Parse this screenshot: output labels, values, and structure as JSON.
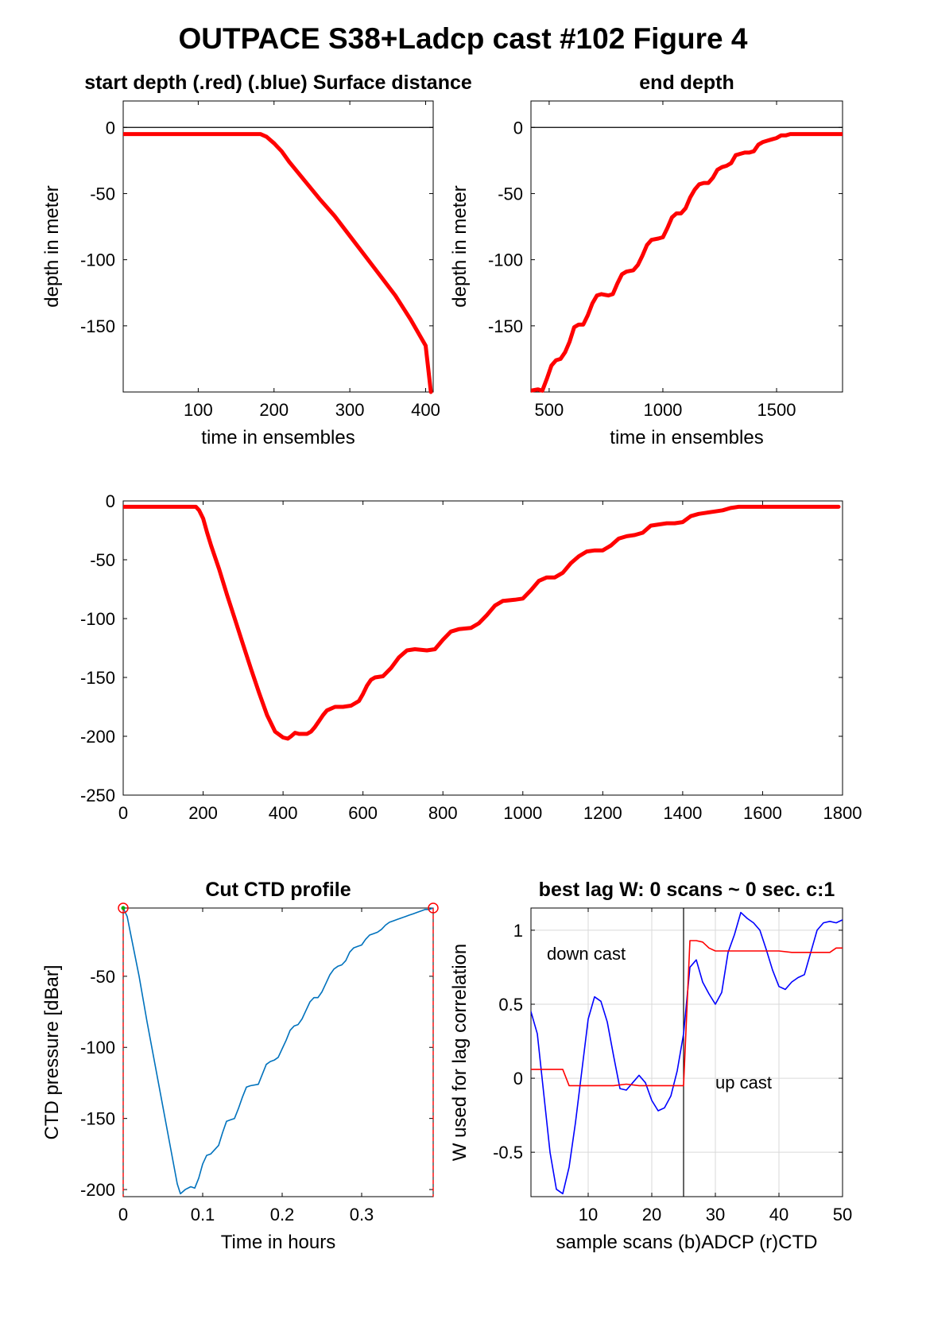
{
  "figure_title": "OUTPACE S38+Ladcp cast #102   Figure 4",
  "colors": {
    "red": "#ff0000",
    "blue": "#0000ff",
    "ctd_line": "#0072bd",
    "axis": "#000000",
    "grid": "#d9d9d9",
    "start_marker": "#00aa00"
  },
  "chart_data": [
    {
      "id": "start_depth",
      "type": "line",
      "title": "start depth (.red) (.blue) Surface distance",
      "xlabel": "time in ensembles",
      "ylabel": "depth in meter",
      "xlim": [
        1,
        410
      ],
      "ylim": [
        -200,
        20
      ],
      "xticks": [
        100,
        200,
        300,
        400
      ],
      "yticks": [
        0,
        -50,
        -100,
        -150
      ],
      "grid": false,
      "box": true,
      "hlines": [
        0
      ],
      "series": [
        {
          "color": "red",
          "x": [
            1,
            50,
            100,
            150,
            170,
            182,
            190,
            200,
            210,
            220,
            230,
            240,
            260,
            280,
            300,
            320,
            340,
            360,
            380,
            400,
            407
          ],
          "y": [
            -5,
            -5,
            -5,
            -5,
            -5,
            -5,
            -7,
            -12,
            -18,
            -26,
            -33,
            -40,
            -54,
            -67,
            -82,
            -97,
            -112,
            -127,
            -145,
            -165,
            -200
          ]
        }
      ]
    },
    {
      "id": "end_depth",
      "type": "line",
      "title": "end depth",
      "xlabel": "time in ensembles",
      "ylabel": "depth in meter",
      "xlim": [
        420,
        1790
      ],
      "ylim": [
        -200,
        20
      ],
      "xticks": [
        500,
        1000,
        1500
      ],
      "yticks": [
        0,
        -50,
        -100,
        -150
      ],
      "grid": false,
      "box": true,
      "hlines": [
        0
      ],
      "series": [
        {
          "color": "red",
          "x": [
            420,
            450,
            470,
            490,
            510,
            530,
            550,
            570,
            590,
            610,
            630,
            650,
            670,
            690,
            710,
            730,
            760,
            780,
            800,
            820,
            840,
            870,
            890,
            910,
            930,
            950,
            980,
            1000,
            1020,
            1040,
            1060,
            1080,
            1100,
            1120,
            1140,
            1160,
            1180,
            1200,
            1220,
            1240,
            1260,
            1280,
            1300,
            1320,
            1340,
            1360,
            1380,
            1400,
            1420,
            1440,
            1460,
            1480,
            1500,
            1520,
            1540,
            1560,
            1600,
            1700,
            1790
          ],
          "y": [
            -199,
            -198,
            -199,
            -190,
            -180,
            -176,
            -175,
            -170,
            -162,
            -151,
            -149,
            -149,
            -142,
            -133,
            -127,
            -126,
            -127,
            -126,
            -118,
            -111,
            -109,
            -108,
            -104,
            -97,
            -89,
            -85,
            -84,
            -83,
            -76,
            -68,
            -65,
            -65,
            -61,
            -53,
            -47,
            -43,
            -42,
            -42,
            -38,
            -32,
            -30,
            -29,
            -27,
            -21,
            -20,
            -19,
            -19,
            -18,
            -13,
            -11,
            -10,
            -9,
            -8,
            -6,
            -6,
            -5,
            -5,
            -5,
            -5
          ]
        }
      ]
    },
    {
      "id": "full_profile",
      "type": "line",
      "title": "",
      "xlabel": "",
      "ylabel": "",
      "xlim": [
        0,
        1800
      ],
      "ylim": [
        -250,
        0
      ],
      "xticks": [
        0,
        200,
        400,
        600,
        800,
        1000,
        1200,
        1400,
        1600,
        1800
      ],
      "yticks": [
        0,
        -50,
        -100,
        -150,
        -200,
        -250
      ],
      "grid": false,
      "box": true,
      "hlines": [],
      "series": [
        {
          "color": "red",
          "x": [
            1,
            50,
            100,
            150,
            170,
            182,
            190,
            200,
            210,
            220,
            240,
            260,
            280,
            300,
            320,
            340,
            360,
            380,
            400,
            412,
            420,
            430,
            440,
            450,
            460,
            470,
            480,
            490,
            500,
            510,
            530,
            550,
            570,
            590,
            600,
            610,
            620,
            630,
            650,
            670,
            690,
            710,
            730,
            760,
            780,
            800,
            820,
            840,
            870,
            890,
            910,
            930,
            950,
            980,
            1000,
            1020,
            1040,
            1060,
            1080,
            1100,
            1120,
            1140,
            1160,
            1180,
            1200,
            1220,
            1240,
            1260,
            1280,
            1300,
            1320,
            1340,
            1360,
            1380,
            1400,
            1420,
            1440,
            1460,
            1480,
            1500,
            1520,
            1540,
            1560,
            1600,
            1700,
            1790
          ],
          "y": [
            -5,
            -5,
            -5,
            -5,
            -5,
            -5,
            -8,
            -15,
            -27,
            -38,
            -58,
            -80,
            -101,
            -122,
            -143,
            -163,
            -182,
            -196,
            -201,
            -202,
            -200,
            -197,
            -198,
            -198,
            -198,
            -196,
            -192,
            -187,
            -182,
            -178,
            -175,
            -175,
            -174,
            -170,
            -164,
            -157,
            -152,
            -150,
            -149,
            -142,
            -133,
            -127,
            -126,
            -127,
            -126,
            -118,
            -111,
            -109,
            -108,
            -104,
            -97,
            -89,
            -85,
            -84,
            -83,
            -76,
            -68,
            -65,
            -65,
            -61,
            -53,
            -47,
            -43,
            -42,
            -42,
            -38,
            -32,
            -30,
            -29,
            -27,
            -21,
            -20,
            -19,
            -19,
            -18,
            -13,
            -11,
            -10,
            -9,
            -8,
            -6,
            -5,
            -5,
            -5,
            -5,
            -5
          ]
        }
      ]
    },
    {
      "id": "cut_ctd",
      "type": "line",
      "title": "Cut CTD profile",
      "xlabel": "Time in hours",
      "ylabel": "CTD pressure [dBar]",
      "xlim": [
        0,
        0.39
      ],
      "ylim": [
        -205,
        -2
      ],
      "xticks": [
        0,
        0.1,
        0.2,
        0.3
      ],
      "xticklabels": [
        "0",
        "0.1",
        "0.2",
        "0.3"
      ],
      "yticks": [
        -50,
        -100,
        -150,
        -200
      ],
      "grid": false,
      "box": true,
      "hlines": [],
      "vlines_dashed": [
        0,
        0.39
      ],
      "series": [
        {
          "color": "ctd_line",
          "x": [
            0,
            0.005,
            0.01,
            0.02,
            0.03,
            0.04,
            0.05,
            0.06,
            0.068,
            0.072,
            0.078,
            0.085,
            0.09,
            0.095,
            0.1,
            0.105,
            0.11,
            0.12,
            0.125,
            0.13,
            0.135,
            0.14,
            0.145,
            0.15,
            0.155,
            0.16,
            0.17,
            0.175,
            0.18,
            0.185,
            0.19,
            0.195,
            0.2,
            0.205,
            0.21,
            0.215,
            0.22,
            0.225,
            0.23,
            0.235,
            0.24,
            0.245,
            0.25,
            0.255,
            0.26,
            0.265,
            0.27,
            0.275,
            0.28,
            0.285,
            0.29,
            0.295,
            0.3,
            0.305,
            0.31,
            0.315,
            0.32,
            0.325,
            0.33,
            0.335,
            0.34,
            0.345,
            0.35,
            0.355,
            0.36,
            0.365,
            0.37,
            0.375,
            0.38,
            0.385,
            0.39
          ],
          "y": [
            -2,
            -8,
            -22,
            -50,
            -82,
            -112,
            -142,
            -172,
            -196,
            -203,
            -200,
            -198,
            -199,
            -192,
            -182,
            -176,
            -175,
            -169,
            -160,
            -152,
            -151,
            -150,
            -143,
            -135,
            -128,
            -127,
            -126,
            -119,
            -112,
            -110,
            -109,
            -107,
            -101,
            -95,
            -88,
            -85,
            -84,
            -80,
            -74,
            -68,
            -65,
            -65,
            -61,
            -55,
            -49,
            -45,
            -43,
            -42,
            -39,
            -33,
            -30,
            -29,
            -28,
            -24,
            -21,
            -20,
            -19,
            -17,
            -14,
            -12,
            -11,
            -10,
            -9,
            -8,
            -7,
            -6,
            -5,
            -4,
            -3,
            -3,
            -2
          ]
        }
      ],
      "endpoint_markers": [
        {
          "x": 0,
          "y": -2
        },
        {
          "x": 0.39,
          "y": -2
        }
      ]
    },
    {
      "id": "best_lag",
      "type": "line",
      "title": "best lag W: 0 scans ~ 0 sec.  c:1",
      "xlabel": "sample scans (b)ADCP (r)CTD",
      "ylabel": "W used for lag correlation",
      "xlim": [
        1,
        50
      ],
      "ylim": [
        -0.8,
        1.15
      ],
      "xticks": [
        10,
        20,
        30,
        40,
        50
      ],
      "yticks": [
        1,
        0.5,
        0,
        -0.5
      ],
      "yticklabels": [
        "1",
        "0.5",
        "0",
        "-0.5"
      ],
      "grid": true,
      "box": true,
      "vlines": [
        25
      ],
      "annotations": [
        {
          "text": "down cast",
          "x": 3.5,
          "y": 0.8
        },
        {
          "text": "up cast",
          "x": 30,
          "y": -0.07
        }
      ],
      "series": [
        {
          "color": "blue",
          "x": [
            1,
            2,
            3,
            4,
            5,
            6,
            7,
            8,
            9,
            10,
            11,
            12,
            13,
            14,
            15,
            16,
            17,
            18,
            19,
            20,
            21,
            22,
            23,
            24,
            25,
            26,
            27,
            28,
            29,
            30,
            31,
            32,
            33,
            34,
            35,
            36,
            37,
            38,
            39,
            40,
            41,
            42,
            43,
            44,
            45,
            46,
            47,
            48,
            49,
            50
          ],
          "y": [
            0.45,
            0.3,
            -0.1,
            -0.5,
            -0.75,
            -0.78,
            -0.6,
            -0.3,
            0.05,
            0.4,
            0.55,
            0.52,
            0.38,
            0.15,
            -0.07,
            -0.08,
            -0.03,
            0.02,
            -0.03,
            -0.15,
            -0.22,
            -0.2,
            -0.12,
            0.05,
            0.3,
            0.75,
            0.8,
            0.65,
            0.57,
            0.5,
            0.58,
            0.85,
            0.97,
            1.12,
            1.08,
            1.05,
            1.0,
            0.87,
            0.73,
            0.62,
            0.6,
            0.65,
            0.68,
            0.7,
            0.85,
            1.0,
            1.05,
            1.06,
            1.05,
            1.07
          ]
        },
        {
          "color": "red",
          "x": [
            1,
            3,
            5,
            6,
            7,
            8,
            10,
            12,
            14,
            16,
            18,
            20,
            22,
            24,
            25,
            25.1,
            26,
            27,
            28,
            29,
            30,
            32,
            34,
            36,
            38,
            40,
            42,
            44,
            46,
            48,
            49,
            50
          ],
          "y": [
            0.06,
            0.06,
            0.06,
            0.06,
            -0.05,
            -0.05,
            -0.05,
            -0.05,
            -0.05,
            -0.04,
            -0.05,
            -0.05,
            -0.05,
            -0.05,
            -0.05,
            0.05,
            0.93,
            0.93,
            0.92,
            0.88,
            0.86,
            0.86,
            0.86,
            0.86,
            0.86,
            0.86,
            0.85,
            0.85,
            0.85,
            0.85,
            0.88,
            0.88
          ]
        }
      ]
    }
  ]
}
